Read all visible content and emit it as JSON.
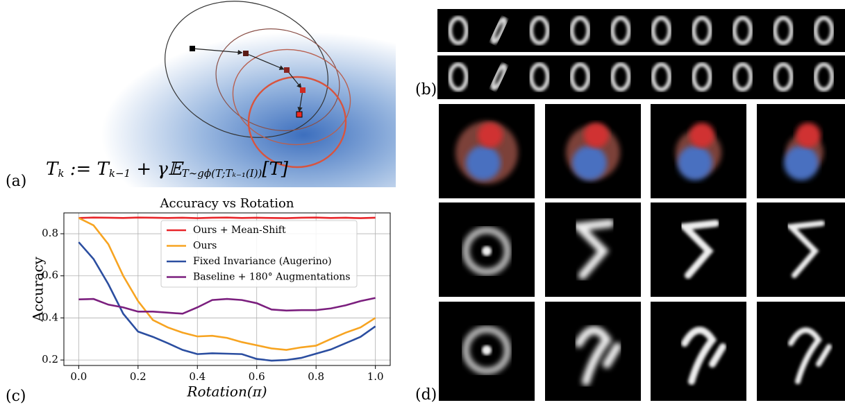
{
  "panel_labels": [
    "(a)",
    "(b)",
    "(c)",
    "(d)"
  ],
  "formula": [
    "T",
    "k",
    " := T",
    "k−1",
    " + γ𝔼",
    "T∼gϕ(T;Tₖ₋₁(I))",
    "[T]"
  ],
  "chart_data": {
    "type": "line",
    "title": "Accuracy vs Rotation",
    "x_label": "Rotation(π)",
    "y_label": "Accuracy",
    "x": [
      0,
      0.05,
      0.1,
      0.15,
      0.2,
      0.25,
      0.3,
      0.35,
      0.4,
      0.45,
      0.5,
      0.55,
      0.6,
      0.65,
      0.7,
      0.75,
      0.8,
      0.85,
      0.9,
      0.95,
      1.0
    ],
    "series": [
      {
        "name": "Ours + Mean-Shift",
        "color": "#e8262a",
        "values": [
          0.875,
          0.877,
          0.876,
          0.875,
          0.877,
          0.876,
          0.875,
          0.876,
          0.874,
          0.876,
          0.877,
          0.875,
          0.876,
          0.875,
          0.874,
          0.876,
          0.877,
          0.875,
          0.876,
          0.874,
          0.876
        ]
      },
      {
        "name": "Ours",
        "color": "#f7a421",
        "values": [
          0.875,
          0.84,
          0.75,
          0.6,
          0.48,
          0.39,
          0.355,
          0.33,
          0.312,
          0.315,
          0.305,
          0.285,
          0.27,
          0.255,
          0.248,
          0.26,
          0.268,
          0.3,
          0.33,
          0.355,
          0.4
        ]
      },
      {
        "name": "Fixed Invariance (Augerino)",
        "color": "#2b4ea0",
        "values": [
          0.76,
          0.68,
          0.56,
          0.42,
          0.335,
          0.31,
          0.28,
          0.248,
          0.228,
          0.232,
          0.23,
          0.228,
          0.205,
          0.197,
          0.2,
          0.21,
          0.23,
          0.25,
          0.28,
          0.31,
          0.36
        ]
      },
      {
        "name": "Baseline + 180° Augmentations",
        "color": "#7b1f7e",
        "values": [
          0.488,
          0.49,
          0.463,
          0.45,
          0.43,
          0.43,
          0.425,
          0.42,
          0.45,
          0.485,
          0.49,
          0.485,
          0.47,
          0.44,
          0.435,
          0.437,
          0.437,
          0.445,
          0.46,
          0.48,
          0.495
        ]
      }
    ],
    "xlim": [
      -0.05,
      1.05
    ],
    "ylim": [
      0.174,
      0.899
    ],
    "xticks": [
      {
        "value": 0,
        "label": "0.0"
      },
      {
        "value": 0.2,
        "label": "0.2"
      },
      {
        "value": 0.4,
        "label": "0.4"
      },
      {
        "value": 0.6,
        "label": "0.6"
      },
      {
        "value": 0.8,
        "label": "0.8"
      },
      {
        "value": 1,
        "label": "1.0"
      }
    ],
    "yticks": [
      0.2,
      0.4,
      0.6,
      0.8
    ],
    "grid": true,
    "legend": "upper-center"
  }
}
